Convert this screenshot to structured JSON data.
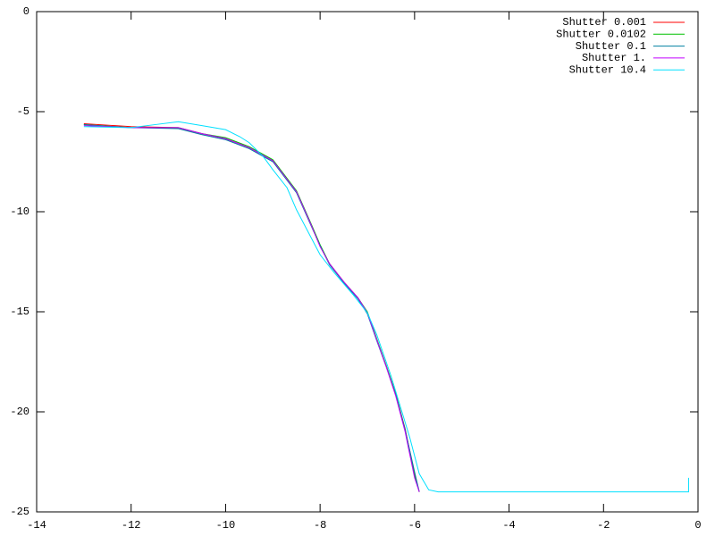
{
  "chart_data": {
    "type": "line",
    "xlim": [
      -14,
      0
    ],
    "xticks": [
      -14,
      -12,
      -10,
      -8,
      -6,
      -4,
      -2,
      0
    ],
    "ylim": [
      -25,
      0
    ],
    "yticks": [
      -25,
      -20,
      -15,
      -10,
      -5,
      0
    ],
    "legend": "top-right",
    "series": [
      {
        "name": "Shutter 0.001",
        "color": "#ff0000",
        "x": [
          -13,
          -12,
          -11,
          -10.5,
          -10,
          -9.5,
          -9,
          -8.5,
          -8.2,
          -8,
          -7.8,
          -7.5,
          -7.2,
          -7,
          -6.8,
          -6.6,
          -6.4,
          -6.2,
          -6,
          -5.9
        ],
        "values": [
          -5.6,
          -5.75,
          -5.8,
          -6.1,
          -6.35,
          -6.8,
          -7.45,
          -9.0,
          -10.6,
          -11.7,
          -12.6,
          -13.5,
          -14.3,
          -15.05,
          -16.4,
          -17.7,
          -19.1,
          -20.85,
          -23.1,
          -24
        ]
      },
      {
        "name": "Shutter 0.0102",
        "color": "#00c000",
        "x": [
          -13,
          -12,
          -11,
          -10.5,
          -10,
          -9.5,
          -9,
          -8.5,
          -8.2,
          -8,
          -7.8,
          -7.5,
          -7.2,
          -7,
          -6.8,
          -6.6,
          -6.4,
          -6.2,
          -6,
          -5.9
        ],
        "values": [
          -5.65,
          -5.8,
          -5.8,
          -6.1,
          -6.3,
          -6.75,
          -7.4,
          -8.95,
          -10.55,
          -11.65,
          -12.6,
          -13.5,
          -14.3,
          -15.0,
          -16.35,
          -17.7,
          -19.1,
          -20.9,
          -23.2,
          -24
        ]
      },
      {
        "name": "Shutter 0.1",
        "color": "#0080a0",
        "x": [
          -13,
          -12,
          -11,
          -10.5,
          -10,
          -9.5,
          -9,
          -8.5,
          -8.2,
          -8,
          -7.8,
          -7.5,
          -7.2,
          -7,
          -6.8,
          -6.6,
          -6.4,
          -6.2,
          -6,
          -5.9
        ],
        "values": [
          -5.65,
          -5.8,
          -5.85,
          -6.15,
          -6.4,
          -6.85,
          -7.5,
          -9.05,
          -10.65,
          -11.7,
          -12.65,
          -13.55,
          -14.35,
          -15.1,
          -16.45,
          -17.75,
          -19.15,
          -20.9,
          -23.0,
          -24
        ]
      },
      {
        "name": "Shutter 1.",
        "color": "#c000ff",
        "x": [
          -13,
          -12,
          -11,
          -10.5,
          -10,
          -9.5,
          -9,
          -8.5,
          -8.2,
          -8,
          -7.8,
          -7.5,
          -7.2,
          -7,
          -6.8,
          -6.6,
          -6.4,
          -6.2,
          -6,
          -5.9
        ],
        "values": [
          -5.7,
          -5.8,
          -5.8,
          -6.1,
          -6.35,
          -6.8,
          -7.45,
          -9.0,
          -10.6,
          -11.75,
          -12.6,
          -13.5,
          -14.3,
          -15.05,
          -16.4,
          -17.75,
          -19.2,
          -21.0,
          -23.3,
          -24
        ]
      },
      {
        "name": "Shutter 10.4",
        "color": "#00e0ff",
        "x": [
          -13,
          -12,
          -11.5,
          -11,
          -10.5,
          -10,
          -9.7,
          -9.5,
          -9.2,
          -9,
          -8.7,
          -8.5,
          -8.2,
          -8,
          -7.7,
          -7.3,
          -7,
          -6.8,
          -6.5,
          -6.3,
          -6.1,
          -5.9,
          -5.7,
          -5.5,
          -0.2,
          -0.2
        ],
        "values": [
          -5.75,
          -5.8,
          -5.65,
          -5.5,
          -5.7,
          -5.9,
          -6.25,
          -6.55,
          -7.25,
          -7.9,
          -8.8,
          -9.9,
          -11.25,
          -12.15,
          -13.05,
          -14.15,
          -15.05,
          -16.15,
          -18.2,
          -19.75,
          -21.3,
          -23.1,
          -23.9,
          -24,
          -24,
          -23.3
        ]
      }
    ]
  }
}
